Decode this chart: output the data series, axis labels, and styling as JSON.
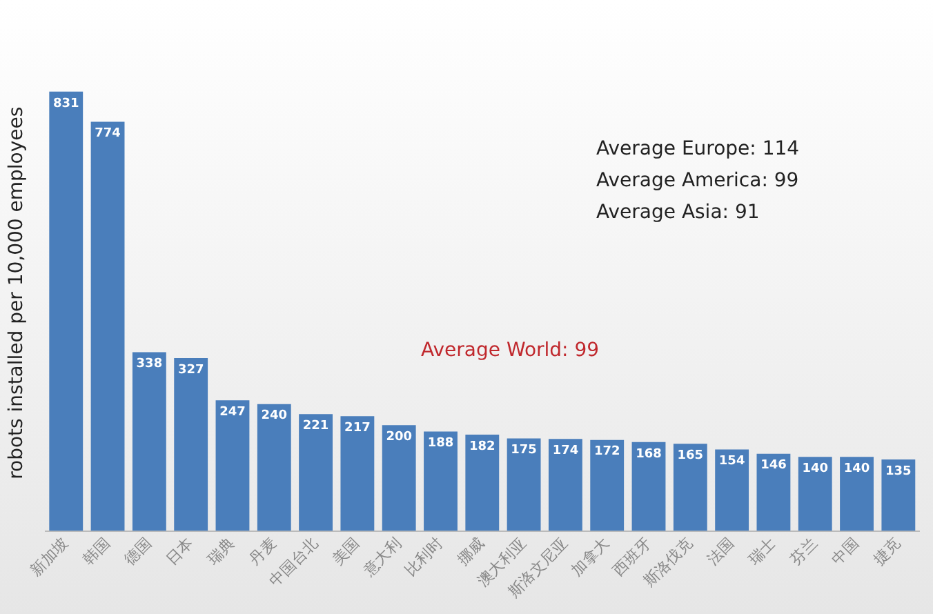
{
  "chart_data": {
    "type": "bar",
    "ylabel": "robots installed per 10,000 employees",
    "categories": [
      "新加坡",
      "韩国",
      "德国",
      "日本",
      "瑞典",
      "丹麦",
      "中国台北",
      "美国",
      "意大利",
      "比利时",
      "挪威",
      "澳大利亚",
      "斯洛文尼亚",
      "加拿大",
      "西班牙",
      "斯洛伐克",
      "法国",
      "瑞士",
      "芬兰",
      "中国",
      "捷克"
    ],
    "values": [
      831,
      774,
      338,
      327,
      247,
      240,
      221,
      217,
      200,
      188,
      182,
      175,
      174,
      172,
      168,
      165,
      154,
      146,
      140,
      140,
      135
    ],
    "color": "#4a7ebb",
    "data_labels": true,
    "grid": false,
    "legend": false,
    "annotations": [
      "Average Europe: 114",
      "Average America: 99",
      "Average Asia: 91",
      "Average World: 99"
    ]
  }
}
